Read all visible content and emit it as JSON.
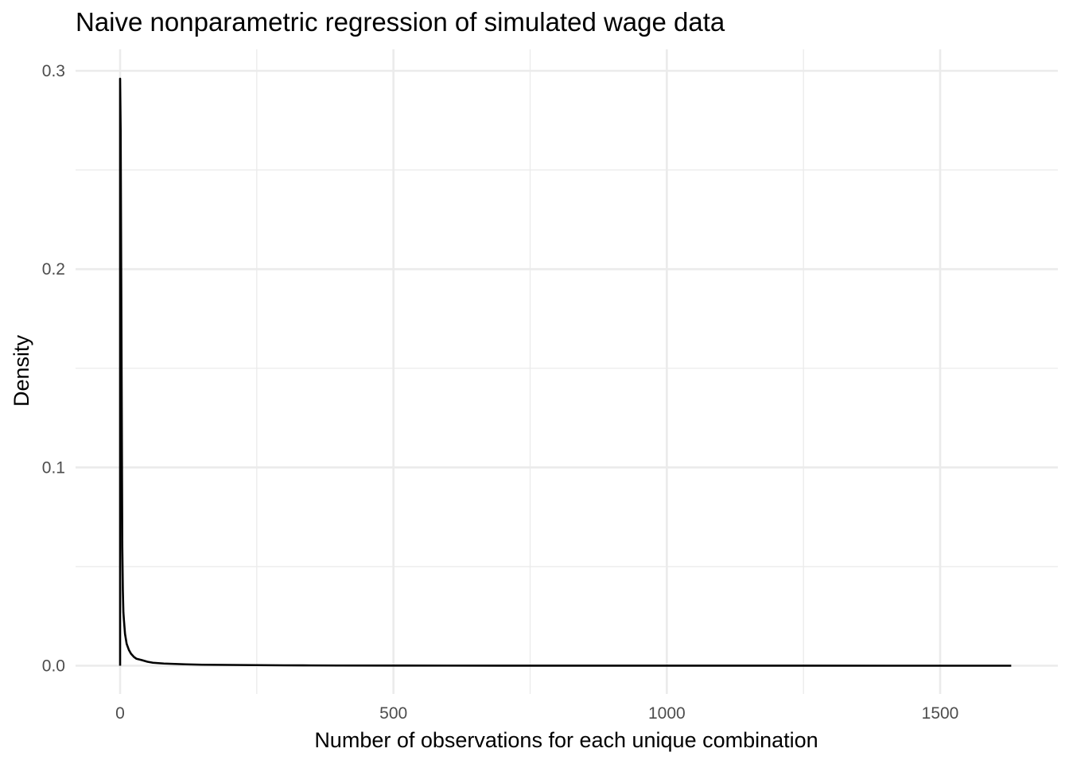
{
  "chart_data": {
    "type": "line",
    "title": "Naive nonparametric regression of simulated wage data",
    "xlabel": "Number of observations for each unique combination",
    "ylabel": "Density",
    "xlim": [
      -25,
      1705
    ],
    "ylim": [
      -0.0125,
      0.3085
    ],
    "x_ticks": [
      0,
      500,
      1000,
      1500
    ],
    "x_tick_labels": [
      "0",
      "500",
      "1000",
      "1500"
    ],
    "x_minor_ticks": [
      250,
      750,
      1250
    ],
    "y_ticks": [
      0.0,
      0.1,
      0.2,
      0.3
    ],
    "y_tick_labels": [
      "0.0",
      "0.1",
      "0.2",
      "0.3"
    ],
    "y_minor_ticks": [
      0.05,
      0.15,
      0.25
    ],
    "grid": true,
    "series": [
      {
        "name": "density",
        "color": "#000000",
        "x": [
          0,
          0,
          1,
          3,
          4,
          5,
          6,
          7,
          9,
          12,
          16,
          20,
          25,
          30,
          40,
          50,
          60,
          70,
          80,
          100,
          120,
          150,
          200,
          250,
          300,
          350,
          400,
          500,
          600,
          700,
          800,
          1000,
          1200,
          1400,
          1630,
          1630
        ],
        "y": [
          0,
          0.296,
          0.27,
          0.13,
          0.06,
          0.038,
          0.027,
          0.023,
          0.016,
          0.011,
          0.008,
          0.006,
          0.0045,
          0.0035,
          0.0028,
          0.002,
          0.0015,
          0.0013,
          0.0011,
          0.0009,
          0.0007,
          0.0005,
          0.0004,
          0.0003,
          0.0002,
          0.00015,
          0.0001,
          8e-05,
          5e-05,
          3e-05,
          2e-05,
          1e-05,
          1e-05,
          0,
          0,
          0
        ]
      }
    ]
  }
}
